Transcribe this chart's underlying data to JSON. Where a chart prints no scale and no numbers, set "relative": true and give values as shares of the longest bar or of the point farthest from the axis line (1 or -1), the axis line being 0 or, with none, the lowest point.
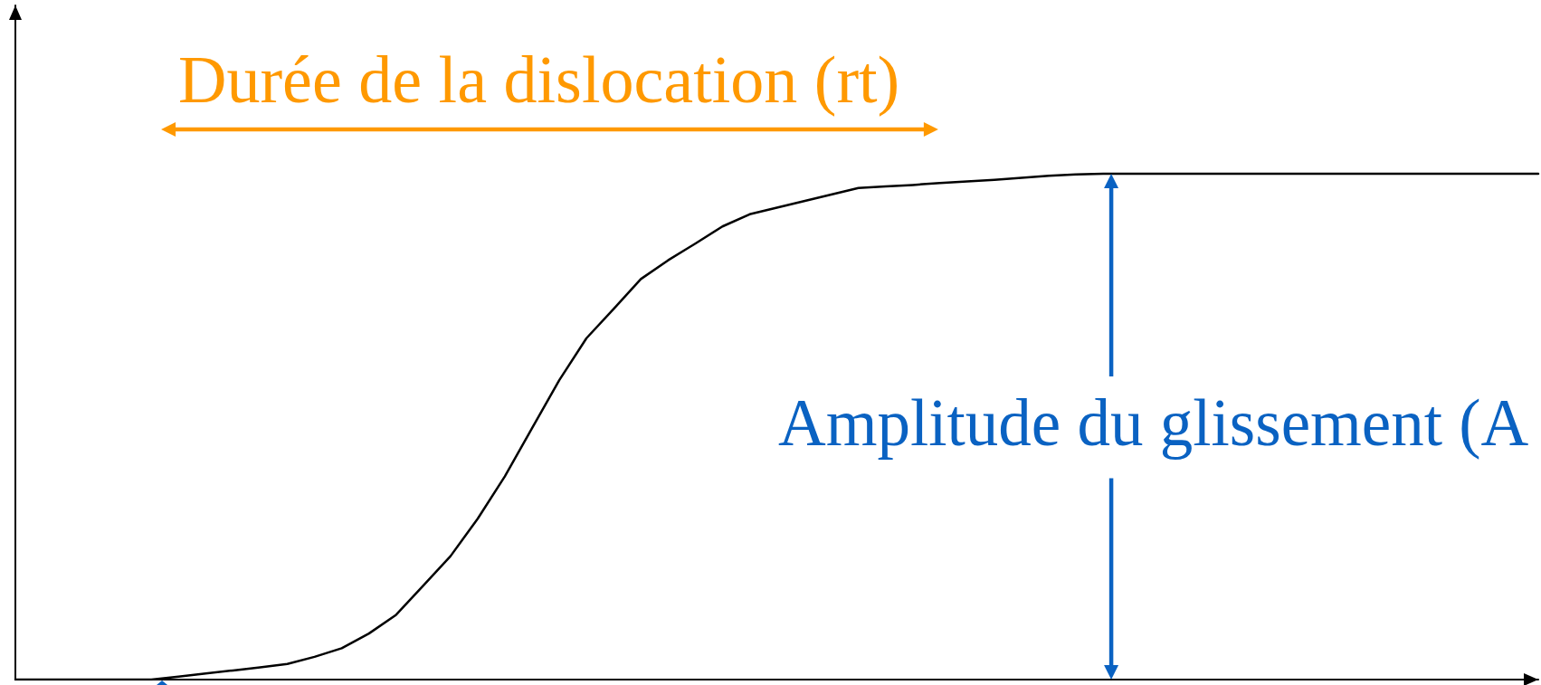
{
  "chart_data": {
    "type": "line",
    "relative": true,
    "tick_labels": false,
    "categories": [
      null,
      null,
      null,
      null,
      null,
      null,
      null,
      null,
      null,
      null,
      null,
      null,
      null,
      null,
      null,
      null,
      null,
      null,
      null,
      null,
      null,
      null,
      null,
      null,
      null,
      null,
      null,
      null,
      null,
      null,
      null,
      null,
      null,
      null,
      null,
      null,
      null,
      null,
      null,
      null,
      null,
      null,
      null,
      null,
      null,
      null,
      null,
      null,
      null,
      null,
      null,
      null,
      null,
      null,
      null,
      null,
      null
    ],
    "values": [
      0,
      0,
      0,
      0,
      0,
      0,
      0.006,
      0.012,
      0.018,
      0.024,
      0.031,
      0.045,
      0.062,
      0.091,
      0.128,
      0.186,
      0.244,
      0.318,
      0.402,
      0.497,
      0.592,
      0.675,
      0.733,
      0.792,
      0.829,
      0.862,
      0.896,
      0.92,
      0.933,
      0.946,
      0.959,
      0.972,
      0.975,
      0.978,
      0.982,
      0.985,
      0.988,
      0.992,
      0.996,
      0.999,
      1,
      1,
      1,
      1,
      1,
      1,
      1,
      1,
      1,
      1,
      1,
      1,
      1,
      1,
      1,
      1,
      1
    ],
    "color": "#000000",
    "annotations": [
      "Durée de la dislocation (rt)",
      "Amplitude du glissement (A"
    ]
  }
}
